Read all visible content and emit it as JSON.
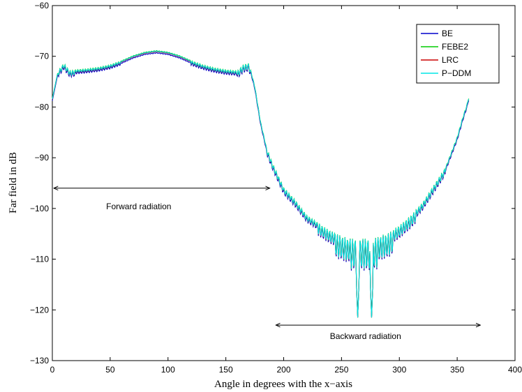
{
  "chart_data": {
    "type": "line",
    "title": "",
    "xlabel": "Angle in degrees with the x−axis",
    "ylabel": "Far field in dB",
    "xlim": [
      0,
      400
    ],
    "ylim": [
      -130,
      -60
    ],
    "xticks": [
      0,
      50,
      100,
      150,
      200,
      250,
      300,
      350,
      400
    ],
    "yticks": [
      -130,
      -120,
      -110,
      -100,
      -90,
      -80,
      -70,
      -60
    ],
    "xtick_labels": [
      "0",
      "50",
      "100",
      "150",
      "200",
      "250",
      "300",
      "350",
      "400"
    ],
    "ytick_labels": [
      "−130",
      "−120",
      "−110",
      "−100",
      "−90",
      "−80",
      "−70",
      "−60"
    ],
    "grid": false,
    "legend_position": "top-right",
    "series": [
      {
        "name": "BE",
        "color": "#0000cc"
      },
      {
        "name": "FEBE2",
        "color": "#00cc00"
      },
      {
        "name": "LRC",
        "color": "#cc0000"
      },
      {
        "name": "P−DDM",
        "color": "#00e5e5"
      }
    ],
    "x": [
      0,
      5,
      10,
      15,
      20,
      30,
      40,
      50,
      60,
      70,
      80,
      90,
      100,
      110,
      120,
      130,
      140,
      150,
      160,
      165,
      170,
      175,
      180,
      185,
      190,
      195,
      200,
      210,
      220,
      230,
      240,
      250,
      255,
      260,
      265,
      270,
      275,
      280,
      290,
      300,
      310,
      320,
      330,
      340,
      350,
      355,
      360
    ],
    "envelope_db": [
      -78.5,
      -73,
      -71.5,
      -73,
      -72.8,
      -72.6,
      -72.3,
      -71.8,
      -71,
      -70,
      -69.3,
      -69,
      -69.3,
      -70,
      -71,
      -71.8,
      -72.4,
      -72.8,
      -73,
      -71.8,
      -71.5,
      -76,
      -83,
      -88,
      -91,
      -93.5,
      -96,
      -98.5,
      -101.5,
      -103,
      -104.5,
      -105.5,
      -106,
      -106,
      -106,
      -106,
      -106,
      -105.8,
      -105,
      -103.5,
      -101.5,
      -99,
      -95.5,
      -92,
      -86,
      -82,
      -78.5
    ],
    "null_db": [
      -121.5,
      -121.5
    ],
    "null_angles": [
      264,
      276
    ],
    "annotations": [
      {
        "text": "Forward radiation",
        "arrow_x": [
          0,
          188
        ],
        "arrow_y": -96
      },
      {
        "text": "Backward radiation",
        "arrow_x": [
          192,
          370
        ],
        "arrow_y": -123
      }
    ]
  }
}
